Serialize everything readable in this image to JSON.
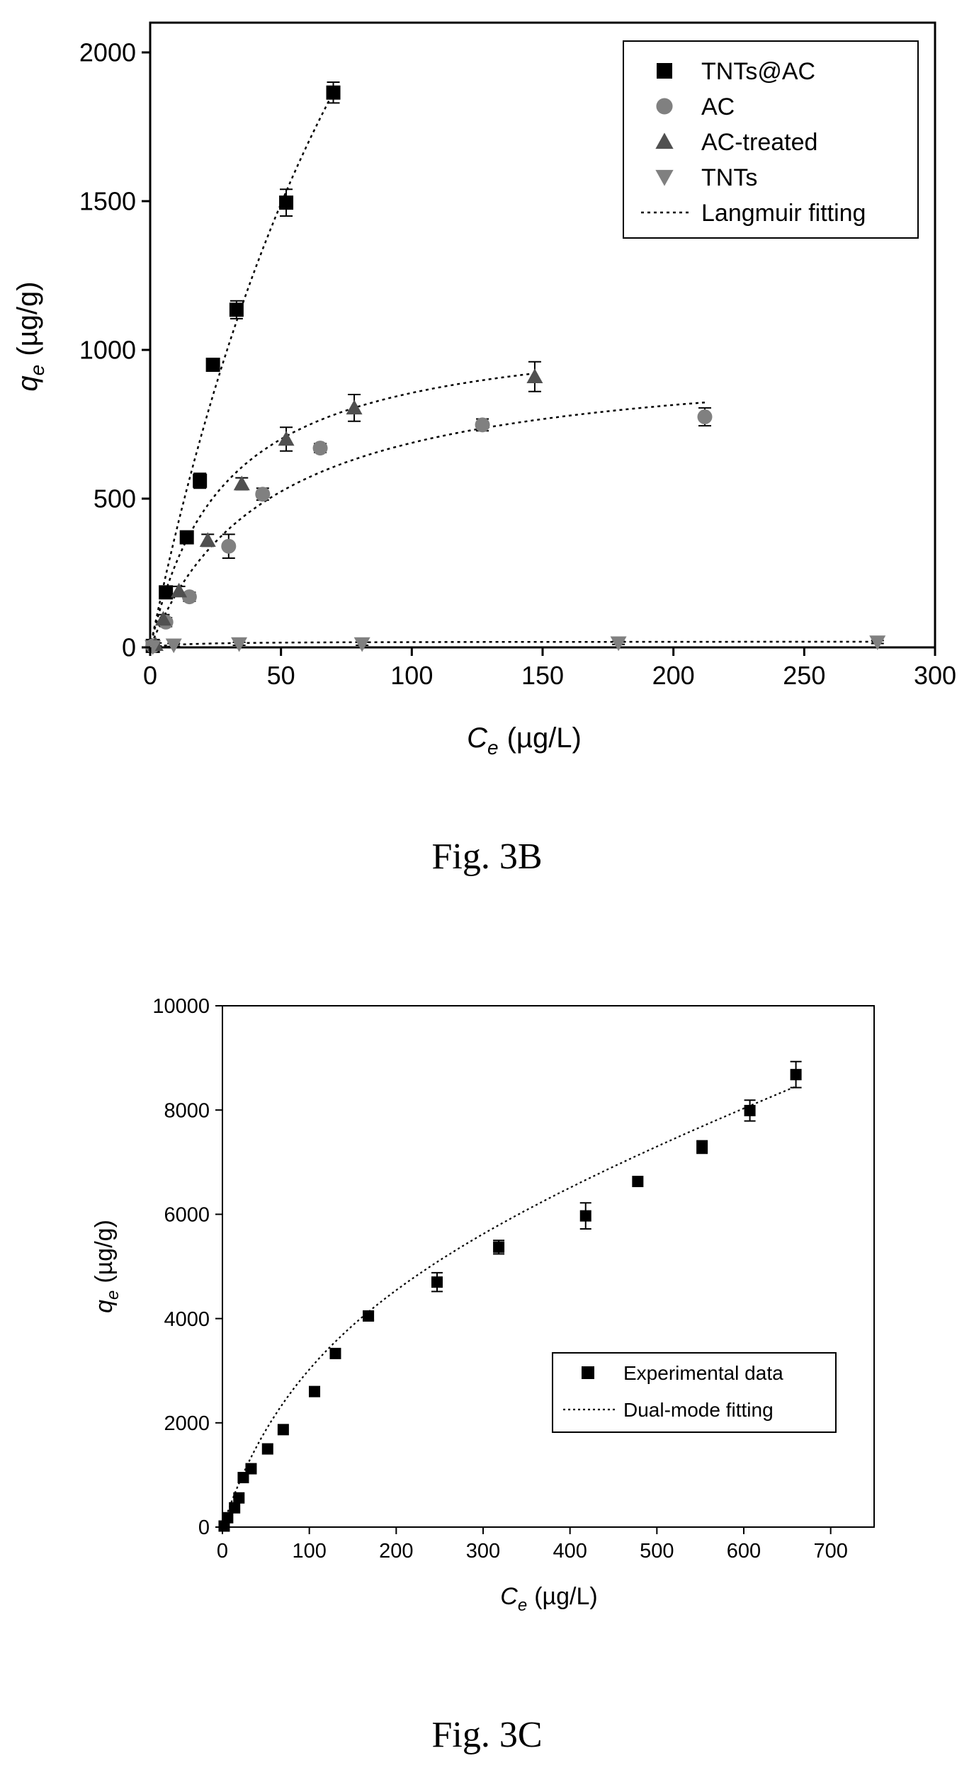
{
  "chart_data": [
    {
      "type": "scatter",
      "title": "",
      "xlabel": "C",
      "xlabel_sub": "e",
      "xlabel_unit": "(µg/L)",
      "ylabel": "q",
      "ylabel_sub": "e",
      "ylabel_unit": "(µg/g)",
      "xlim": [
        0,
        300
      ],
      "ylim": [
        0,
        2100
      ],
      "xticks": [
        "0",
        "50",
        "100",
        "150",
        "200",
        "250",
        "300"
      ],
      "yticks": [
        "0",
        "500",
        "1000",
        "1500",
        "2000"
      ],
      "legend_position": "top-right",
      "grid": false,
      "series": [
        {
          "name": "TNTs@AC",
          "marker": "square",
          "color": "#000000",
          "points": [
            {
              "x": 1,
              "y": 5,
              "err": 5
            },
            {
              "x": 6,
              "y": 185,
              "err": 15
            },
            {
              "x": 14,
              "y": 370,
              "err": 15
            },
            {
              "x": 19,
              "y": 560,
              "err": 25
            },
            {
              "x": 24,
              "y": 950,
              "err": 20
            },
            {
              "x": 33,
              "y": 1135,
              "err": 30
            },
            {
              "x": 52,
              "y": 1495,
              "err": 45
            },
            {
              "x": 70,
              "y": 1865,
              "err": 35
            }
          ],
          "fit": {
            "type": "langmuir",
            "qmax": 5000,
            "K": 0.0085,
            "xmax": 70
          }
        },
        {
          "name": "AC",
          "marker": "circle",
          "color": "#808080",
          "points": [
            {
              "x": 1,
              "y": 5,
              "err": 5
            },
            {
              "x": 6,
              "y": 85,
              "err": 15
            },
            {
              "x": 15,
              "y": 170,
              "err": 15
            },
            {
              "x": 30,
              "y": 340,
              "err": 40
            },
            {
              "x": 43,
              "y": 515,
              "err": 20
            },
            {
              "x": 65,
              "y": 670,
              "err": 15
            },
            {
              "x": 127,
              "y": 748,
              "err": 20
            },
            {
              "x": 212,
              "y": 775,
              "err": 30
            }
          ],
          "fit": {
            "type": "langmuir",
            "qmax": 1000,
            "K": 0.022,
            "xmax": 212
          }
        },
        {
          "name": "AC-treated",
          "marker": "triangle-up",
          "color": "#505050",
          "points": [
            {
              "x": 2,
              "y": 10,
              "err": 5
            },
            {
              "x": 5,
              "y": 95,
              "err": 15
            },
            {
              "x": 11,
              "y": 190,
              "err": 15
            },
            {
              "x": 22,
              "y": 360,
              "err": 20
            },
            {
              "x": 35,
              "y": 550,
              "err": 20
            },
            {
              "x": 52,
              "y": 700,
              "err": 40
            },
            {
              "x": 78,
              "y": 805,
              "err": 45
            },
            {
              "x": 147,
              "y": 910,
              "err": 50
            }
          ],
          "fit": {
            "type": "langmuir",
            "qmax": 1100,
            "K": 0.035,
            "xmax": 147
          }
        },
        {
          "name": "TNTs",
          "marker": "triangle-down",
          "color": "#808080",
          "points": [
            {
              "x": 1,
              "y": 2,
              "err": 3
            },
            {
              "x": 9,
              "y": 8,
              "err": 5
            },
            {
              "x": 34,
              "y": 12,
              "err": 5
            },
            {
              "x": 81,
              "y": 12,
              "err": 5
            },
            {
              "x": 179,
              "y": 15,
              "err": 5
            },
            {
              "x": 278,
              "y": 18,
              "err": 5
            }
          ],
          "fit": {
            "type": "langmuir",
            "qmax": 20,
            "K": 0.08,
            "xmax": 278
          }
        }
      ],
      "legend_fit_label": "Langmuir fitting"
    },
    {
      "type": "scatter",
      "title": "",
      "xlabel": "C",
      "xlabel_sub": "e",
      "xlabel_unit": "(µg/L)",
      "ylabel": "q",
      "ylabel_sub": "e",
      "ylabel_unit": "(µg/g)",
      "xlim": [
        0,
        750
      ],
      "ylim": [
        0,
        10000
      ],
      "xticks": [
        "0",
        "100",
        "200",
        "300",
        "400",
        "500",
        "600",
        "700"
      ],
      "yticks": [
        "0",
        "2000",
        "4000",
        "6000",
        "8000",
        "10000"
      ],
      "legend_position": "lower-right",
      "grid": false,
      "series": [
        {
          "name": "Experimental data",
          "marker": "square",
          "color": "#000000",
          "points": [
            {
              "x": 2,
              "y": 20,
              "err": 0
            },
            {
              "x": 6,
              "y": 180,
              "err": 0
            },
            {
              "x": 14,
              "y": 370,
              "err": 0
            },
            {
              "x": 19,
              "y": 560,
              "err": 0
            },
            {
              "x": 24,
              "y": 950,
              "err": 0
            },
            {
              "x": 33,
              "y": 1120,
              "err": 0
            },
            {
              "x": 52,
              "y": 1500,
              "err": 0
            },
            {
              "x": 70,
              "y": 1870,
              "err": 0
            },
            {
              "x": 106,
              "y": 2600,
              "err": 0
            },
            {
              "x": 130,
              "y": 3330,
              "err": 0
            },
            {
              "x": 168,
              "y": 4050,
              "err": 80
            },
            {
              "x": 247,
              "y": 4700,
              "err": 180
            },
            {
              "x": 318,
              "y": 5370,
              "err": 130
            },
            {
              "x": 418,
              "y": 5970,
              "err": 250
            },
            {
              "x": 478,
              "y": 6630,
              "err": 0
            },
            {
              "x": 552,
              "y": 7290,
              "err": 120
            },
            {
              "x": 607,
              "y": 7990,
              "err": 200
            },
            {
              "x": 660,
              "y": 8680,
              "err": 250
            }
          ],
          "fit": {
            "type": "dual-mode",
            "kd": 5.8,
            "qmax": 5500,
            "K": 0.008,
            "xmax": 660
          }
        }
      ],
      "legend_fit_label": "Dual-mode fitting"
    }
  ],
  "captions": {
    "fig_b": "Fig. 3B",
    "fig_c": "Fig. 3C"
  }
}
